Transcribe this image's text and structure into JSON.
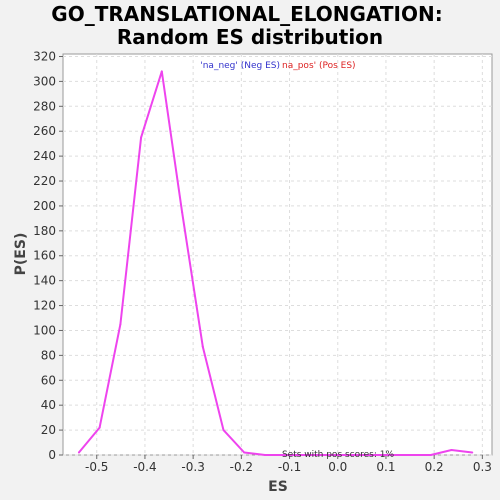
{
  "chart_data": {
    "type": "line",
    "title_line1": "GO_TRANSLATIONAL_ELONGATION:",
    "title_line2": "Random ES distribution",
    "xlabel": "ES",
    "ylabel": "P(ES)",
    "xlim": [
      -0.57,
      0.32
    ],
    "ylim": [
      0,
      322
    ],
    "xticks": [
      -0.5,
      -0.4,
      -0.3,
      -0.2,
      -0.1,
      0.0,
      0.1,
      0.2,
      0.3
    ],
    "xtick_labels": [
      "-0.5",
      "-0.4",
      "-0.3",
      "-0.2",
      "-0.1",
      "0.0",
      "0.1",
      "0.2",
      "0.3"
    ],
    "yticks": [
      0,
      20,
      40,
      60,
      80,
      100,
      120,
      140,
      160,
      180,
      200,
      220,
      240,
      260,
      280,
      300,
      320
    ],
    "ytick_labels": [
      "0",
      "20",
      "40",
      "60",
      "80",
      "100",
      "120",
      "140",
      "160",
      "180",
      "200",
      "220",
      "240",
      "260",
      "280",
      "300",
      "320"
    ],
    "grid": true,
    "legend": {
      "neg_label": "'na_neg' (Neg ES)",
      "pos_label": "na_pos' (Pos ES)",
      "placement": "top-center"
    },
    "annotation": "Sets with pos scores: 1%",
    "series": [
      {
        "color": "#ee44ee",
        "x": [
          -0.537,
          -0.494,
          -0.451,
          -0.408,
          -0.365,
          -0.323,
          -0.28,
          -0.237,
          -0.194,
          -0.151,
          -0.108,
          -0.065,
          -0.022,
          0.021,
          0.064,
          0.107,
          0.15,
          0.193,
          0.236,
          0.279
        ],
        "y": [
          2,
          22,
          105,
          255,
          308,
          195,
          87,
          20,
          2,
          0,
          0,
          0,
          0,
          0,
          0,
          0,
          0,
          0,
          4,
          2
        ]
      }
    ]
  }
}
